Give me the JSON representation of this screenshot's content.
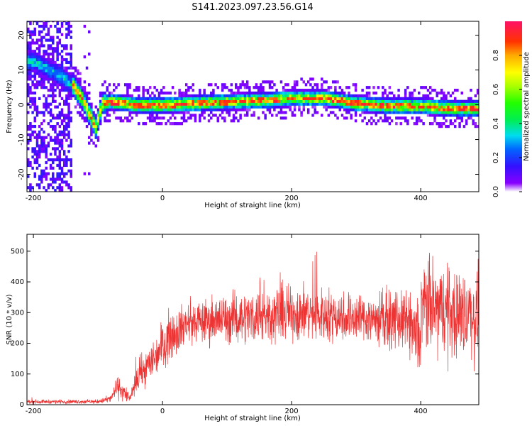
{
  "chart_data": [
    {
      "type": "heatmap",
      "title": "S141.2023.097.23.56.G14",
      "xlabel": "Height of straight line (km)",
      "ylabel": "Frequency (Hz)",
      "xlim": [
        -210,
        490
      ],
      "ylim": [
        -25,
        24
      ],
      "xticks": [
        "-200",
        "0",
        "200",
        "400"
      ],
      "yticks": [
        "20",
        "10",
        "0",
        "-10",
        "-20"
      ],
      "colorbar": {
        "label": "Normalized spectral amplitude",
        "range": [
          0,
          1
        ],
        "ticks": [
          "0.0",
          "0.2",
          "0.4",
          "0.6",
          "0.8"
        ]
      },
      "ridge": [
        {
          "x": -200,
          "y": 12
        },
        {
          "x": -160,
          "y": 8
        },
        {
          "x": -140,
          "y": 5
        },
        {
          "x": -125,
          "y": 1
        },
        {
          "x": -115,
          "y": -3
        },
        {
          "x": -105,
          "y": -7
        },
        {
          "x": -95,
          "y": 0
        },
        {
          "x": -80,
          "y": 0.5
        },
        {
          "x": -40,
          "y": -0.5
        },
        {
          "x": 0,
          "y": -0.5
        },
        {
          "x": 50,
          "y": 0
        },
        {
          "x": 100,
          "y": 0.5
        },
        {
          "x": 150,
          "y": 0.8
        },
        {
          "x": 200,
          "y": 1.5
        },
        {
          "x": 250,
          "y": 1.5
        },
        {
          "x": 300,
          "y": 0
        },
        {
          "x": 350,
          "y": -0.8
        },
        {
          "x": 400,
          "y": -0.8
        },
        {
          "x": 450,
          "y": -1.5
        },
        {
          "x": 490,
          "y": -1.5
        }
      ]
    },
    {
      "type": "line",
      "xlabel": "Height of straight line (km)",
      "ylabel": "SNR (10 * v/v)",
      "xlim": [
        -210,
        490
      ],
      "ylim": [
        0,
        555
      ],
      "xticks": [
        "-200",
        "0",
        "200",
        "400"
      ],
      "yticks": [
        "500",
        "400",
        "300",
        "200",
        "100",
        "0"
      ],
      "series": [
        {
          "color": "#ee3333",
          "envelope": [
            {
              "x": -210,
              "mean": 10,
              "spread": 5
            },
            {
              "x": -100,
              "mean": 10,
              "spread": 5
            },
            {
              "x": -80,
              "mean": 20,
              "spread": 10
            },
            {
              "x": -70,
              "mean": 60,
              "spread": 25
            },
            {
              "x": -60,
              "mean": 40,
              "spread": 25
            },
            {
              "x": -50,
              "mean": 20,
              "spread": 10
            },
            {
              "x": -40,
              "mean": 80,
              "spread": 30
            },
            {
              "x": -30,
              "mean": 110,
              "spread": 40
            },
            {
              "x": -10,
              "mean": 160,
              "spread": 50
            },
            {
              "x": 0,
              "mean": 200,
              "spread": 60
            },
            {
              "x": 20,
              "mean": 240,
              "spread": 60
            },
            {
              "x": 40,
              "mean": 265,
              "spread": 50
            },
            {
              "x": 100,
              "mean": 280,
              "spread": 60
            },
            {
              "x": 200,
              "mean": 300,
              "spread": 70
            },
            {
              "x": 300,
              "mean": 285,
              "spread": 60
            },
            {
              "x": 380,
              "mean": 270,
              "spread": 70
            },
            {
              "x": 398,
              "mean": 200,
              "spread": 100
            },
            {
              "x": 402,
              "mean": 320,
              "spread": 120
            },
            {
              "x": 450,
              "mean": 300,
              "spread": 110
            },
            {
              "x": 490,
              "mean": 290,
              "spread": 110
            }
          ]
        }
      ]
    }
  ]
}
